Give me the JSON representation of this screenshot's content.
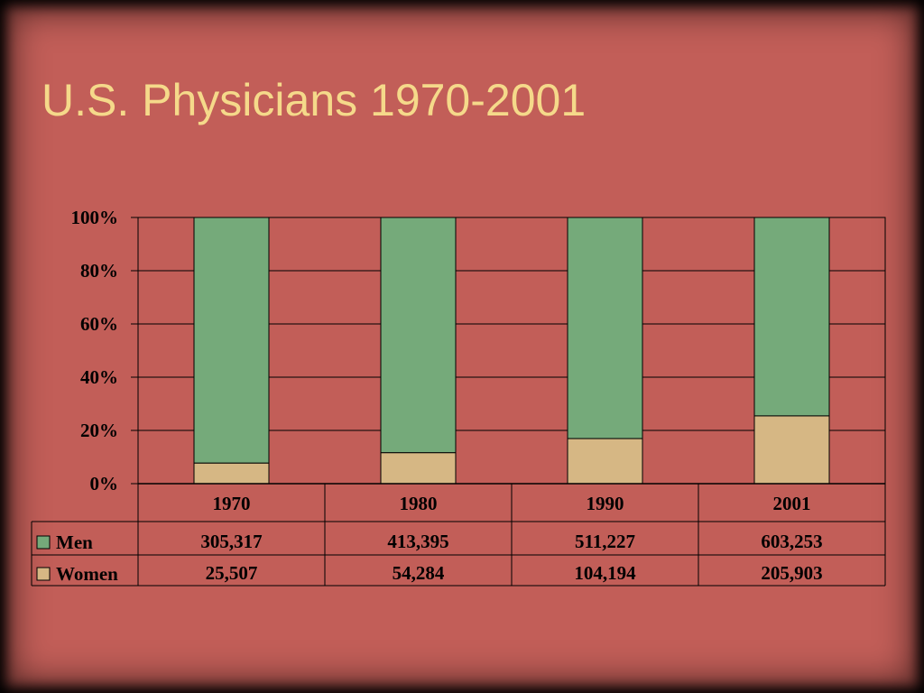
{
  "slide": {
    "title": "U.S. Physicians 1970-2001"
  },
  "colors": {
    "background": "#c25e58",
    "men": "#75aa7a",
    "women": "#d6b784",
    "title": "#f5d98a",
    "lines": "#000000"
  },
  "chart_data": {
    "type": "bar",
    "stacked": "percent",
    "title": "",
    "categories": [
      "1970",
      "1980",
      "1990",
      "2001"
    ],
    "series": [
      {
        "name": "Men",
        "values": [
          305317,
          413395,
          511227,
          603253
        ],
        "labels": [
          "305,317",
          "413,395",
          "511,227",
          "603,253"
        ]
      },
      {
        "name": "Women",
        "values": [
          25507,
          54284,
          104194,
          205903
        ],
        "labels": [
          "25,507",
          "54,284",
          "104,194",
          "205,903"
        ]
      }
    ],
    "yticks": [
      "0%",
      "20%",
      "40%",
      "60%",
      "80%",
      "100%"
    ],
    "ylim": [
      0,
      100
    ],
    "grid": true,
    "legend": "data-table-left"
  }
}
